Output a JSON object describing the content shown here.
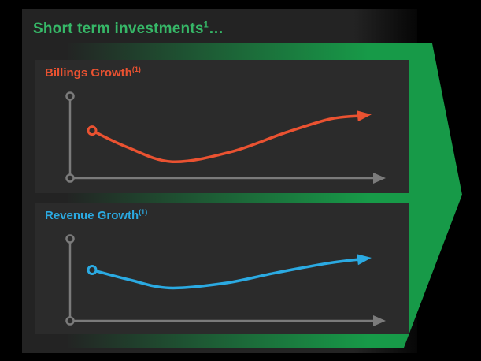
{
  "page": {
    "background": "#000000"
  },
  "slide": {
    "background": "#232323",
    "panel_background": "#2b2b2b",
    "title": {
      "text": "Short term investments",
      "superscript": "1",
      "suffix": "…",
      "color": "#36b767"
    },
    "arrow": {
      "description": "large right-pointing arrow behind chart panels, fading in from left",
      "color": "#179a48",
      "direction": "right"
    }
  },
  "chart_data": [
    {
      "type": "line",
      "title": "Billings Growth",
      "title_superscript": "(1)",
      "color": "#ea5231",
      "axis_color": "#7b7b7b",
      "xlabel": "",
      "ylabel": "",
      "xlim": [
        0,
        1
      ],
      "ylim": [
        0,
        1
      ],
      "grid": false,
      "legend": "none",
      "style": "qualitative trend curve; open-circle start marker; arrowhead at end; unlabeled axes with circle at origin and axis top, arrow on x-axis",
      "series": [
        {
          "name": "Billings Growth",
          "x": [
            0,
            0.13,
            0.3,
            0.52,
            0.72,
            0.89,
            1.0
          ],
          "y": [
            0.58,
            0.38,
            0.2,
            0.32,
            0.55,
            0.72,
            0.76
          ]
        }
      ]
    },
    {
      "type": "line",
      "title": "Revenue Growth",
      "title_superscript": "(1)",
      "color": "#2baae2",
      "axis_color": "#7b7b7b",
      "xlabel": "",
      "ylabel": "",
      "xlim": [
        0,
        1
      ],
      "ylim": [
        0,
        1
      ],
      "grid": false,
      "legend": "none",
      "style": "qualitative trend curve; open-circle start marker; arrowhead at end; unlabeled axes with circle at origin and axis top, arrow on x-axis",
      "series": [
        {
          "name": "Revenue Growth",
          "x": [
            0,
            0.14,
            0.29,
            0.5,
            0.68,
            0.88,
            1.0
          ],
          "y": [
            0.62,
            0.5,
            0.4,
            0.46,
            0.58,
            0.7,
            0.75
          ]
        }
      ]
    }
  ]
}
